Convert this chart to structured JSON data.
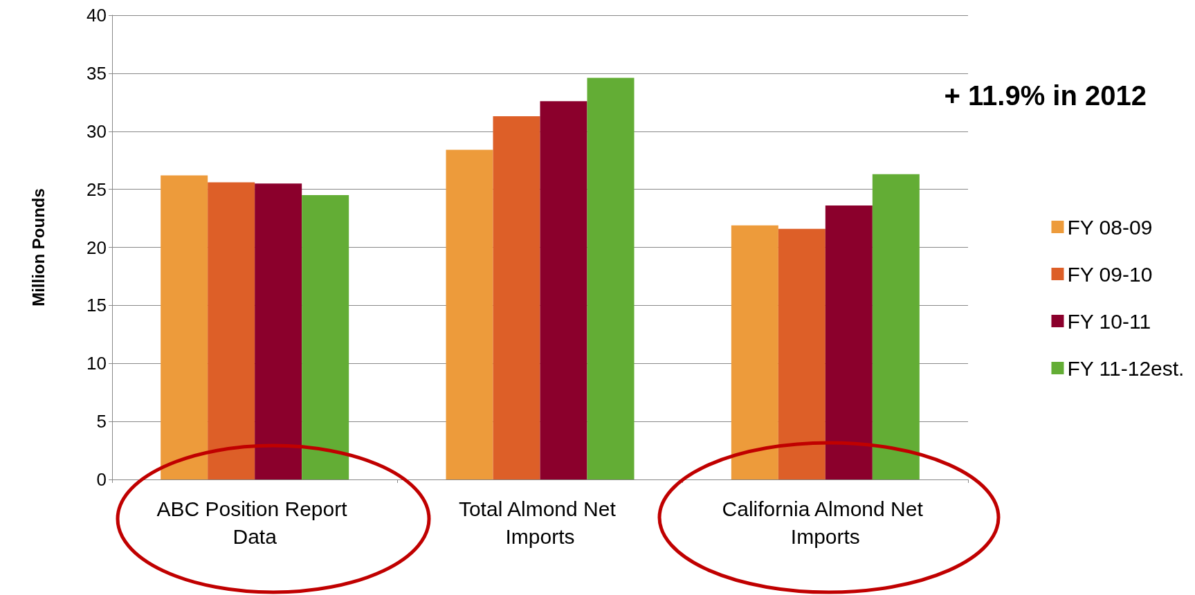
{
  "chart_data": {
    "type": "bar",
    "ylabel": "Million Pounds",
    "categories": [
      "ABC Position Report Data",
      "Total Almond Net Imports",
      "California Almond Net Imports"
    ],
    "series": [
      {
        "name": "FY 08-09",
        "color": "#ed9b3b",
        "values": [
          26.2,
          28.4,
          21.9
        ]
      },
      {
        "name": "FY 09-10",
        "color": "#dd5f28",
        "values": [
          25.6,
          31.3,
          21.6
        ]
      },
      {
        "name": "FY 10-11",
        "color": "#8b002c",
        "values": [
          25.5,
          32.6,
          23.6
        ]
      },
      {
        "name": "FY 11-12est.",
        "color": "#63ad35",
        "values": [
          24.5,
          34.6,
          26.3
        ]
      }
    ],
    "ylim": [
      0,
      40
    ],
    "yticks": [
      0,
      5,
      10,
      15,
      20,
      25,
      30,
      35,
      40
    ],
    "grid": "y",
    "legend": "right",
    "annotations": [
      "+ 11.9% in 2012"
    ]
  }
}
